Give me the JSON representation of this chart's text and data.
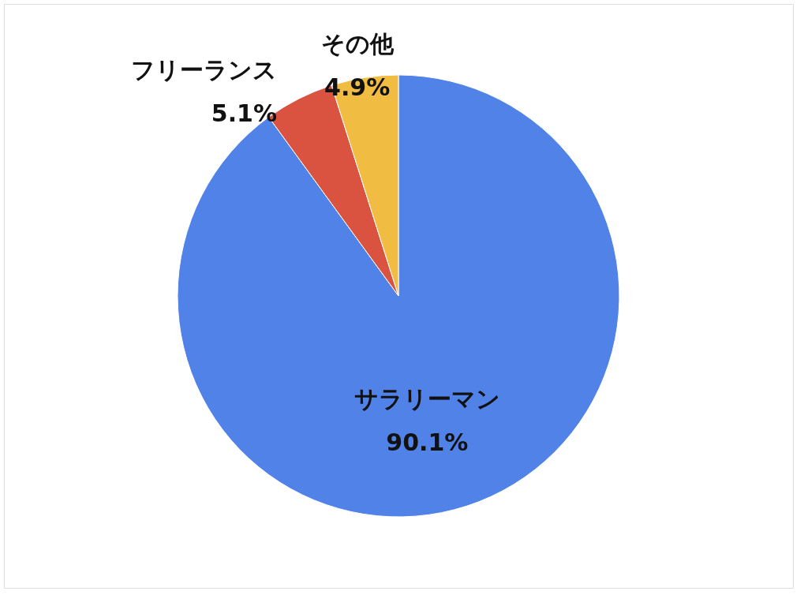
{
  "chart_data": {
    "type": "pie",
    "categories": [
      "サラリーマン",
      "フリーランス",
      "その他"
    ],
    "values": [
      90.1,
      5.1,
      4.9
    ],
    "colors": [
      "#5182e8",
      "#d95340",
      "#f0bd42"
    ],
    "value_labels": [
      "90.1%",
      "5.1%",
      "4.9%"
    ],
    "legend": false
  }
}
